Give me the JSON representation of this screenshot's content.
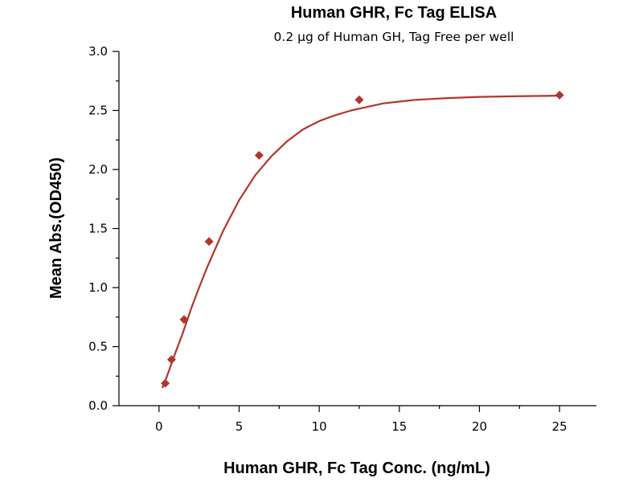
{
  "chart_data": {
    "type": "scatter",
    "title": "Human GHR, Fc Tag ELISA",
    "subtitle": "0.2 µg of Human GH, Tag Free per well",
    "xlabel": "Human GHR, Fc Tag Conc. (ng/mL)",
    "ylabel": "Mean Abs.(OD450)",
    "xlim": [
      -2.5,
      27.3
    ],
    "ylim": [
      0,
      3.0
    ],
    "x_ticks": [
      0,
      5,
      10,
      15,
      20,
      25
    ],
    "x_tick_labels": [
      "0",
      "5",
      "10",
      "15",
      "20",
      "25"
    ],
    "y_ticks": [
      0.0,
      0.5,
      1.0,
      1.5,
      2.0,
      2.5,
      3.0
    ],
    "y_tick_labels": [
      "0.0",
      "0.5",
      "1.0",
      "1.5",
      "2.0",
      "2.5",
      "3.0"
    ],
    "grid": false,
    "legend": "none",
    "marker": "diamond",
    "color": "#b5342f",
    "series": [
      {
        "x": [
          0.391,
          0.781,
          1.563,
          3.125,
          6.25,
          12.5,
          25
        ],
        "y": [
          0.19,
          0.39,
          0.73,
          1.39,
          2.12,
          2.59,
          2.63
        ]
      }
    ],
    "fit_curve": {
      "x": [
        0.2,
        0.5,
        1,
        1.5,
        2,
        2.5,
        3,
        4,
        5,
        6,
        7,
        8,
        9,
        10,
        11,
        12,
        13,
        14,
        15,
        16,
        18,
        20,
        22,
        25
      ],
      "y": [
        0.15,
        0.25,
        0.44,
        0.62,
        0.82,
        1.0,
        1.17,
        1.48,
        1.74,
        1.95,
        2.11,
        2.24,
        2.34,
        2.41,
        2.46,
        2.5,
        2.53,
        2.56,
        2.575,
        2.59,
        2.605,
        2.615,
        2.62,
        2.625
      ]
    }
  }
}
